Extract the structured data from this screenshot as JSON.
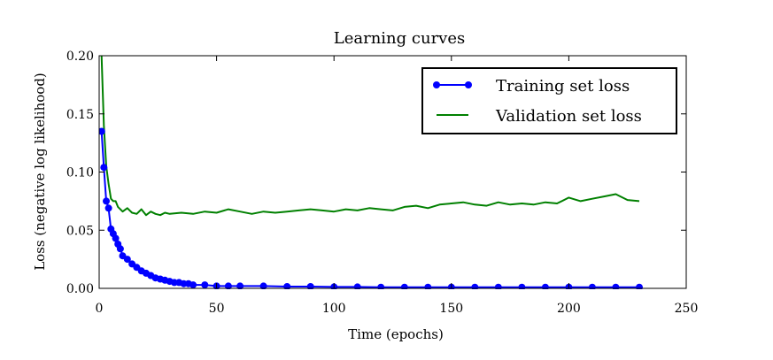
{
  "chart_data": {
    "type": "line",
    "title": "Learning curves",
    "xlabel": "Time (epochs)",
    "ylabel": "Loss (negative log likelihood)",
    "xlim": [
      0,
      250
    ],
    "ylim": [
      0.0,
      0.2
    ],
    "xticks": [
      0,
      50,
      100,
      150,
      200,
      250
    ],
    "xtick_labels": [
      "0",
      "50",
      "100",
      "150",
      "200",
      "250"
    ],
    "yticks": [
      0.0,
      0.05,
      0.1,
      0.15,
      0.2
    ],
    "ytick_labels": [
      "0.00",
      "0.05",
      "0.10",
      "0.15",
      "0.20"
    ],
    "grid": false,
    "legend": "top-right",
    "series": [
      {
        "name": "Training set loss",
        "color": "#0000ff",
        "marker": "circle",
        "x": [
          1,
          2,
          3,
          4,
          5,
          6,
          7,
          8,
          9,
          10,
          12,
          14,
          16,
          18,
          20,
          22,
          24,
          26,
          28,
          30,
          32,
          34,
          36,
          38,
          40,
          45,
          50,
          55,
          60,
          70,
          80,
          90,
          100,
          110,
          120,
          130,
          140,
          150,
          160,
          170,
          180,
          190,
          200,
          210,
          220,
          230
        ],
        "y": [
          0.135,
          0.104,
          0.075,
          0.069,
          0.051,
          0.047,
          0.043,
          0.038,
          0.034,
          0.028,
          0.025,
          0.021,
          0.018,
          0.015,
          0.013,
          0.011,
          0.009,
          0.008,
          0.007,
          0.006,
          0.005,
          0.005,
          0.004,
          0.004,
          0.003,
          0.003,
          0.002,
          0.002,
          0.002,
          0.002,
          0.0015,
          0.0015,
          0.0012,
          0.0012,
          0.001,
          0.001,
          0.001,
          0.001,
          0.001,
          0.001,
          0.001,
          0.001,
          0.001,
          0.001,
          0.001,
          0.001
        ]
      },
      {
        "name": "Validation set loss",
        "color": "#008000",
        "marker": "none",
        "x": [
          1,
          2,
          3,
          4,
          5,
          6,
          7,
          8,
          9,
          10,
          12,
          14,
          16,
          18,
          20,
          22,
          24,
          26,
          28,
          30,
          35,
          40,
          45,
          50,
          55,
          60,
          65,
          70,
          75,
          80,
          85,
          90,
          95,
          100,
          105,
          110,
          115,
          120,
          125,
          130,
          135,
          140,
          145,
          150,
          155,
          160,
          165,
          170,
          175,
          180,
          185,
          190,
          195,
          200,
          205,
          210,
          215,
          220,
          225,
          230
        ],
        "y": [
          0.2,
          0.14,
          0.105,
          0.09,
          0.077,
          0.075,
          0.075,
          0.07,
          0.068,
          0.066,
          0.069,
          0.065,
          0.064,
          0.068,
          0.063,
          0.066,
          0.064,
          0.063,
          0.065,
          0.064,
          0.065,
          0.064,
          0.066,
          0.065,
          0.068,
          0.066,
          0.064,
          0.066,
          0.065,
          0.066,
          0.067,
          0.068,
          0.067,
          0.066,
          0.068,
          0.067,
          0.069,
          0.068,
          0.067,
          0.07,
          0.071,
          0.069,
          0.072,
          0.073,
          0.074,
          0.072,
          0.071,
          0.074,
          0.072,
          0.073,
          0.072,
          0.074,
          0.073,
          0.078,
          0.075,
          0.077,
          0.079,
          0.081,
          0.076,
          0.075
        ]
      }
    ]
  }
}
